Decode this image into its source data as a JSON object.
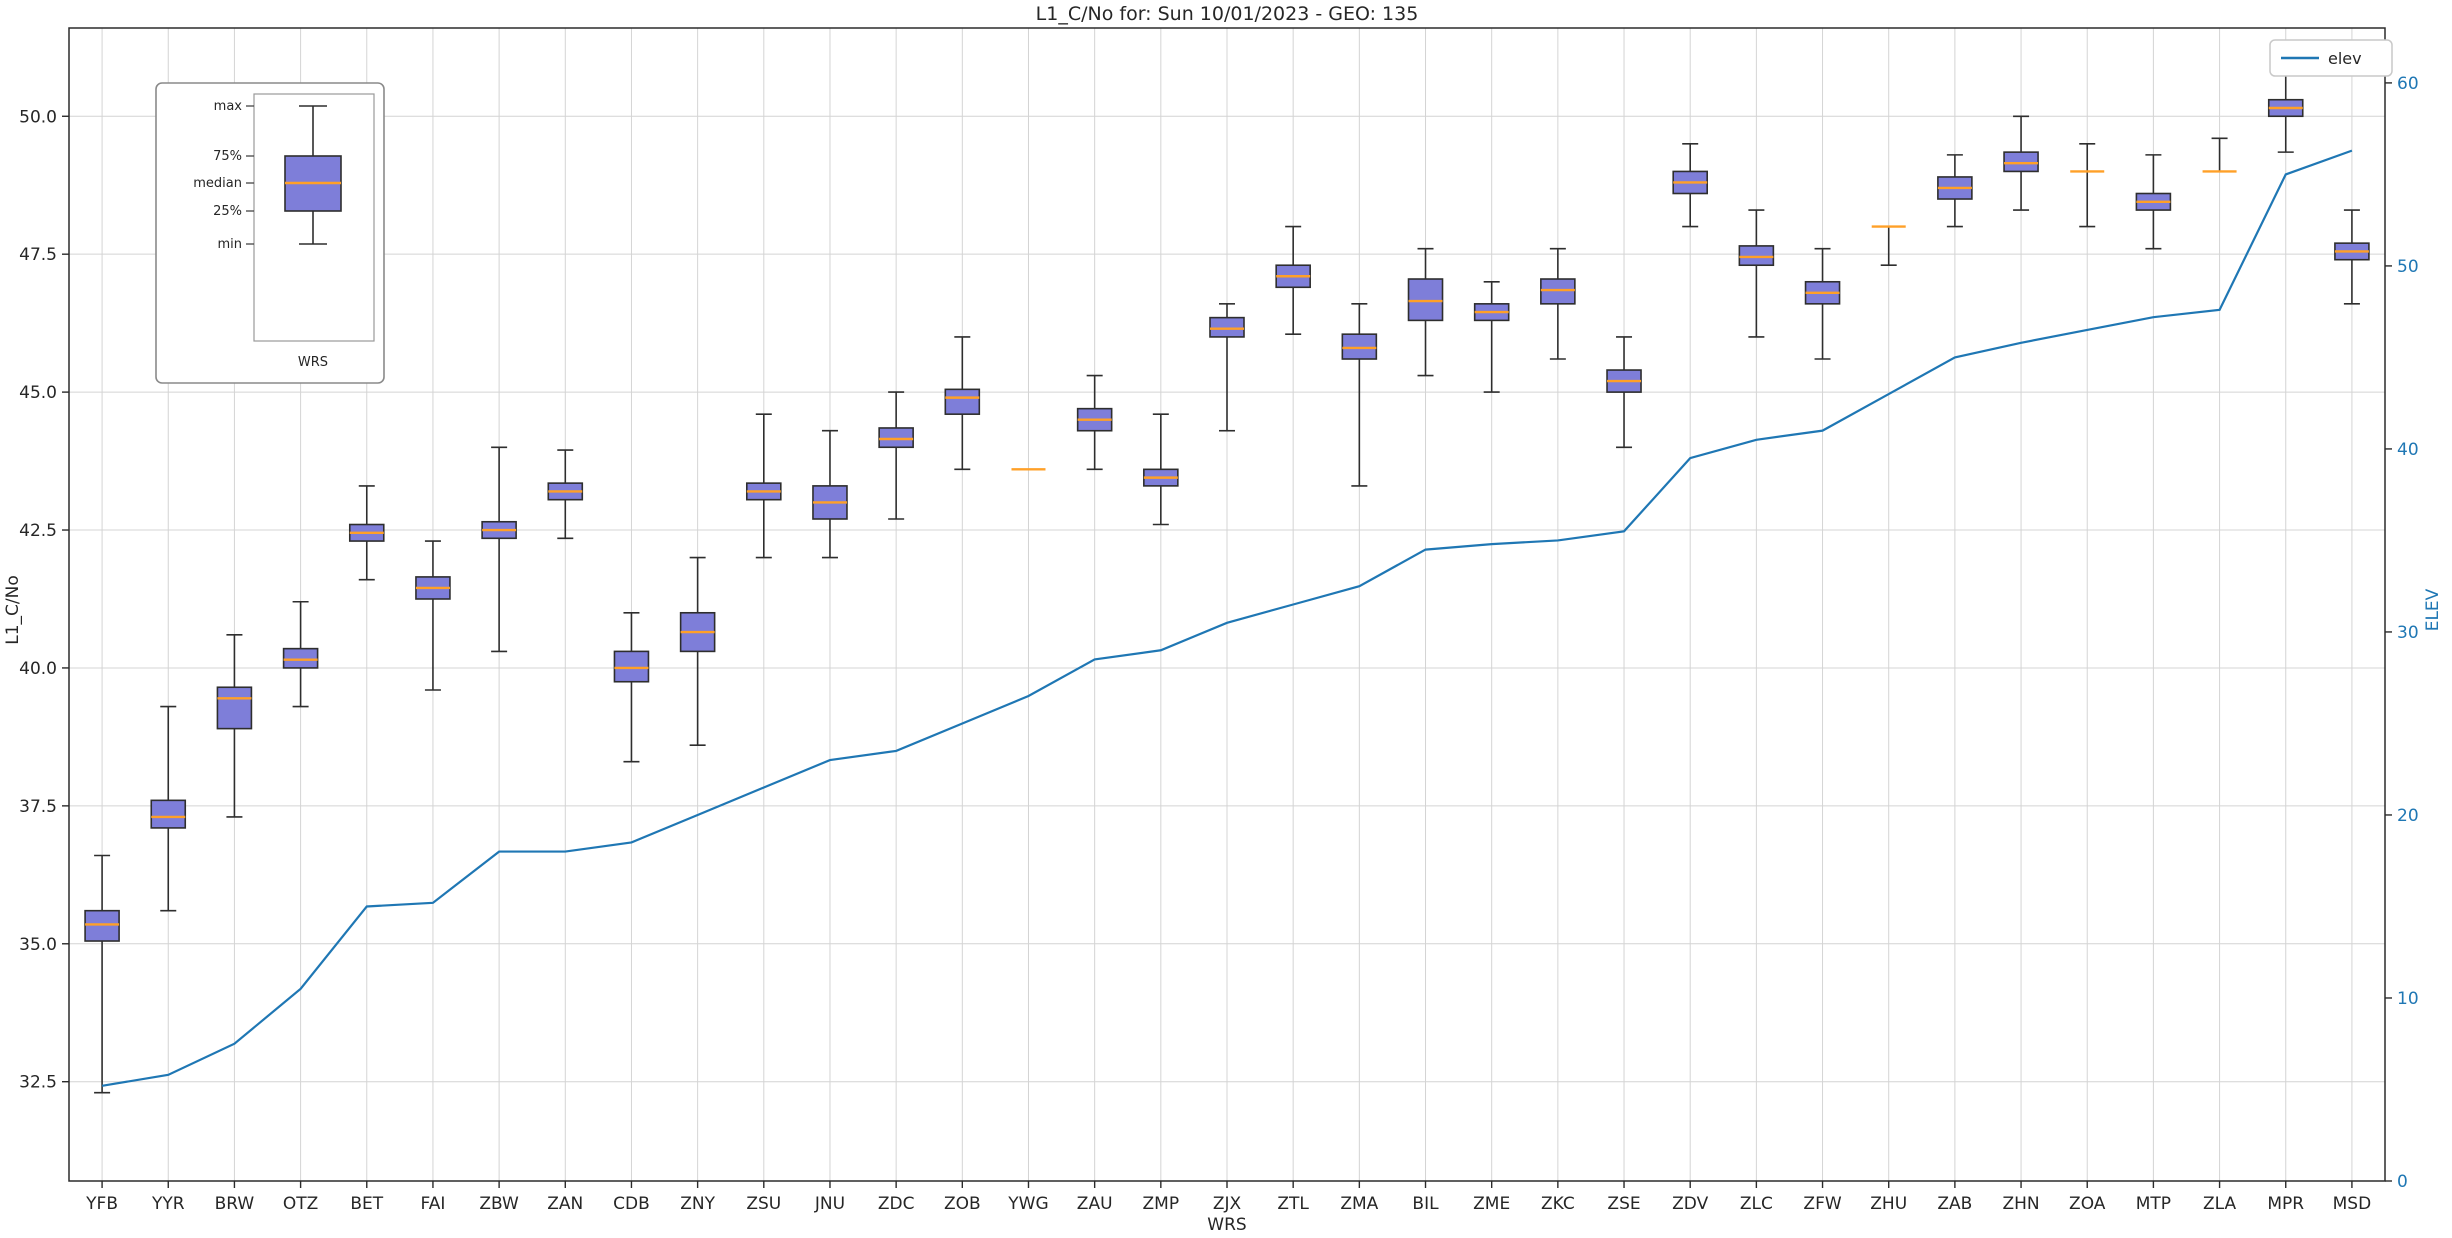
{
  "chart_data": {
    "type": "boxplot-with-line",
    "title": "L1_C/No for: Sun 10/01/2023 - GEO: 135",
    "xlabel": "WRS",
    "ylabel": "L1_C/No",
    "y2label": "ELEV",
    "legend_label": "elev",
    "legend_position": "upper right",
    "grid": true,
    "ylim": [
      30.7,
      51.6
    ],
    "y2lim": [
      0,
      63
    ],
    "yticks": [
      32.5,
      35.0,
      37.5,
      40.0,
      42.5,
      45.0,
      47.5,
      50.0
    ],
    "y2ticks": [
      0,
      10,
      20,
      30,
      40,
      50,
      60
    ],
    "inset": {
      "labels": [
        "max",
        "75%",
        "median",
        "25%",
        "min"
      ],
      "xlabel": "WRS"
    },
    "categories": [
      "YFB",
      "YYR",
      "BRW",
      "OTZ",
      "BET",
      "FAI",
      "ZBW",
      "ZAN",
      "CDB",
      "ZNY",
      "ZSU",
      "JNU",
      "ZDC",
      "ZOB",
      "YWG",
      "ZAU",
      "ZMP",
      "ZJX",
      "ZTL",
      "ZMA",
      "BIL",
      "ZME",
      "ZKC",
      "ZSE",
      "ZDV",
      "ZLC",
      "ZFW",
      "ZHU",
      "ZAB",
      "ZHN",
      "ZOA",
      "MTP",
      "ZLA",
      "MPR",
      "MSD"
    ],
    "boxplots": [
      {
        "whislo": 32.3,
        "q1": 35.05,
        "med": 35.35,
        "q3": 35.6,
        "whishi": 36.6
      },
      {
        "whislo": 35.6,
        "q1": 37.1,
        "med": 37.3,
        "q3": 37.6,
        "whishi": 39.3
      },
      {
        "whislo": 37.3,
        "q1": 38.9,
        "med": 39.45,
        "q3": 39.65,
        "whishi": 40.6
      },
      {
        "whislo": 39.3,
        "q1": 40.0,
        "med": 40.15,
        "q3": 40.35,
        "whishi": 41.2
      },
      {
        "whislo": 41.6,
        "q1": 42.3,
        "med": 42.45,
        "q3": 42.6,
        "whishi": 43.3
      },
      {
        "whislo": 39.6,
        "q1": 41.25,
        "med": 41.45,
        "q3": 41.65,
        "whishi": 42.3
      },
      {
        "whislo": 40.3,
        "q1": 42.35,
        "med": 42.5,
        "q3": 42.65,
        "whishi": 44.0
      },
      {
        "whislo": 42.35,
        "q1": 43.05,
        "med": 43.2,
        "q3": 43.35,
        "whishi": 43.95
      },
      {
        "whislo": 38.3,
        "q1": 39.75,
        "med": 40.0,
        "q3": 40.3,
        "whishi": 41.0
      },
      {
        "whislo": 38.6,
        "q1": 40.3,
        "med": 40.65,
        "q3": 41.0,
        "whishi": 42.0
      },
      {
        "whislo": 42.0,
        "q1": 43.05,
        "med": 43.2,
        "q3": 43.35,
        "whishi": 44.6
      },
      {
        "whislo": 42.0,
        "q1": 42.7,
        "med": 43.0,
        "q3": 43.3,
        "whishi": 44.3
      },
      {
        "whislo": 42.7,
        "q1": 44.0,
        "med": 44.15,
        "q3": 44.35,
        "whishi": 45.0
      },
      {
        "whislo": 43.6,
        "q1": 44.6,
        "med": 44.9,
        "q3": 45.05,
        "whishi": 46.0
      },
      {
        "whislo": 43.6,
        "q1": 43.6,
        "med": 43.6,
        "q3": 43.6,
        "whishi": 43.6
      },
      {
        "whislo": 43.6,
        "q1": 44.3,
        "med": 44.5,
        "q3": 44.7,
        "whishi": 45.3
      },
      {
        "whislo": 42.6,
        "q1": 43.3,
        "med": 43.45,
        "q3": 43.6,
        "whishi": 44.6
      },
      {
        "whislo": 44.3,
        "q1": 46.0,
        "med": 46.15,
        "q3": 46.35,
        "whishi": 46.6
      },
      {
        "whislo": 46.05,
        "q1": 46.9,
        "med": 47.1,
        "q3": 47.3,
        "whishi": 48.0
      },
      {
        "whislo": 43.3,
        "q1": 45.6,
        "med": 45.8,
        "q3": 46.05,
        "whishi": 46.6
      },
      {
        "whislo": 45.3,
        "q1": 46.3,
        "med": 46.65,
        "q3": 47.05,
        "whishi": 47.6
      },
      {
        "whislo": 45.0,
        "q1": 46.3,
        "med": 46.45,
        "q3": 46.6,
        "whishi": 47.0
      },
      {
        "whislo": 45.6,
        "q1": 46.6,
        "med": 46.85,
        "q3": 47.05,
        "whishi": 47.6
      },
      {
        "whislo": 44.0,
        "q1": 45.0,
        "med": 45.2,
        "q3": 45.4,
        "whishi": 46.0
      },
      {
        "whislo": 48.0,
        "q1": 48.6,
        "med": 48.8,
        "q3": 49.0,
        "whishi": 49.5
      },
      {
        "whislo": 46.0,
        "q1": 47.3,
        "med": 47.45,
        "q3": 47.65,
        "whishi": 48.3
      },
      {
        "whislo": 45.6,
        "q1": 46.6,
        "med": 46.8,
        "q3": 47.0,
        "whishi": 47.6
      },
      {
        "whislo": 47.3,
        "q1": 48.0,
        "med": 48.0,
        "q3": 48.0,
        "whishi": 48.0
      },
      {
        "whislo": 48.0,
        "q1": 48.5,
        "med": 48.7,
        "q3": 48.9,
        "whishi": 49.3
      },
      {
        "whislo": 48.3,
        "q1": 49.0,
        "med": 49.15,
        "q3": 49.35,
        "whishi": 50.0
      },
      {
        "whislo": 48.0,
        "q1": 49.0,
        "med": 49.0,
        "q3": 49.0,
        "whishi": 49.5
      },
      {
        "whislo": 47.6,
        "q1": 48.3,
        "med": 48.45,
        "q3": 48.6,
        "whishi": 49.3
      },
      {
        "whislo": 49.0,
        "q1": 49.0,
        "med": 49.0,
        "q3": 49.0,
        "whishi": 49.6
      },
      {
        "whislo": 49.35,
        "q1": 50.0,
        "med": 50.15,
        "q3": 50.3,
        "whishi": 50.8
      },
      {
        "whislo": 46.6,
        "q1": 47.4,
        "med": 47.55,
        "q3": 47.7,
        "whishi": 48.3
      }
    ],
    "series": [
      {
        "name": "elev",
        "axis": "right",
        "values": [
          5.2,
          5.8,
          7.5,
          10.5,
          15,
          15.2,
          18,
          18,
          18.5,
          20,
          21.5,
          23,
          23.5,
          25,
          26.5,
          28.5,
          29,
          30.5,
          31.5,
          32.5,
          34.5,
          34.8,
          35,
          35.5,
          39.5,
          40.5,
          41,
          43,
          45,
          45.8,
          46.5,
          47.2,
          47.6,
          55,
          56.3
        ]
      }
    ],
    "colors": {
      "box_fill": "#7e7ed9",
      "box_edge": "#2e2e2e",
      "median": "#ffa028",
      "line": "#1f77b4",
      "grid": "#d4d4d4",
      "spine": "#2b2b2b"
    }
  }
}
